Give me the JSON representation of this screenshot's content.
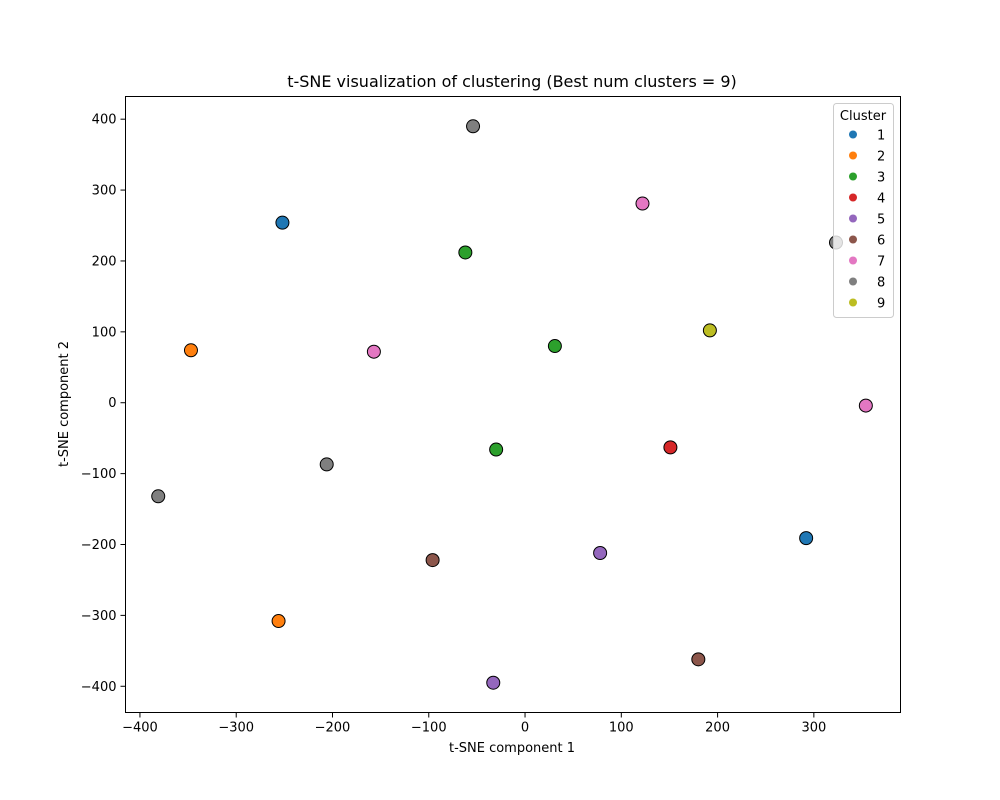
{
  "chart_data": {
    "type": "scatter",
    "title": "t-SNE visualization of clustering (Best num clusters = 9)",
    "xlabel": "t-SNE component 1",
    "ylabel": "t-SNE component 2",
    "xlim": [
      -415,
      390
    ],
    "ylim": [
      -437,
      432
    ],
    "xticks": [
      -400,
      -300,
      -200,
      -100,
      0,
      100,
      200,
      300
    ],
    "yticks": [
      -400,
      -300,
      -200,
      -100,
      0,
      100,
      200,
      300,
      400
    ],
    "grid": false,
    "legend": {
      "title": "Cluster",
      "position": "top-right"
    },
    "series": [
      {
        "name": "1",
        "color": "#1f77b4",
        "points": [
          [
            -252,
            254
          ],
          [
            292,
            -191
          ]
        ]
      },
      {
        "name": "2",
        "color": "#ff7f0e",
        "points": [
          [
            -347,
            74
          ],
          [
            -256,
            -308
          ]
        ]
      },
      {
        "name": "3",
        "color": "#2ca02c",
        "points": [
          [
            -62,
            212
          ],
          [
            31,
            80
          ],
          [
            -30,
            -66
          ]
        ]
      },
      {
        "name": "4",
        "color": "#d62728",
        "points": [
          [
            151,
            -63
          ]
        ]
      },
      {
        "name": "5",
        "color": "#9467bd",
        "points": [
          [
            78,
            -212
          ],
          [
            -33,
            -395
          ]
        ]
      },
      {
        "name": "6",
        "color": "#8c564b",
        "points": [
          [
            -96,
            -222
          ],
          [
            180,
            -362
          ]
        ]
      },
      {
        "name": "7",
        "color": "#e377c2",
        "points": [
          [
            -157,
            72
          ],
          [
            122,
            281
          ],
          [
            354,
            -4
          ]
        ]
      },
      {
        "name": "8",
        "color": "#7f7f7f",
        "points": [
          [
            -54,
            390
          ],
          [
            323,
            226
          ],
          [
            -206,
            -87
          ],
          [
            -381,
            -132
          ]
        ]
      },
      {
        "name": "9",
        "color": "#bcbd22",
        "points": [
          [
            192,
            102
          ]
        ]
      }
    ]
  }
}
